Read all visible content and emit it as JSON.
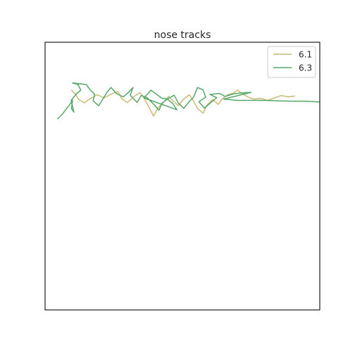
{
  "chart_data": {
    "type": "line",
    "title": "nose tracks",
    "xlabel": "",
    "ylabel": "",
    "xlim": [
      0,
      100
    ],
    "ylim": [
      0,
      100
    ],
    "grid": false,
    "axis_ticks": false,
    "legend_position": "upper right",
    "series": [
      {
        "name": "6.1",
        "color": "#ccb974",
        "points": [
          [
            9.5,
            82.2
          ],
          [
            11.0,
            80.6
          ],
          [
            12.3,
            78.6
          ],
          [
            14.3,
            77.4
          ],
          [
            16.5,
            79.0
          ],
          [
            19.0,
            80.4
          ],
          [
            21.5,
            79.2
          ],
          [
            24.0,
            80.6
          ],
          [
            26.5,
            81.6
          ],
          [
            28.0,
            78.8
          ],
          [
            30.0,
            77.5
          ],
          [
            32.5,
            79.8
          ],
          [
            34.5,
            81.2
          ],
          [
            36.0,
            79.2
          ],
          [
            37.5,
            76.3
          ],
          [
            39.5,
            72.4
          ],
          [
            41.0,
            75.4
          ],
          [
            43.0,
            77.4
          ],
          [
            45.0,
            79.8
          ],
          [
            46.5,
            78.2
          ],
          [
            48.5,
            76.3
          ],
          [
            50.5,
            78.8
          ],
          [
            52.5,
            80.4
          ],
          [
            54.0,
            78.1
          ],
          [
            55.5,
            75.3
          ],
          [
            57.5,
            73.5
          ],
          [
            59.0,
            76.6
          ],
          [
            61.0,
            78.6
          ],
          [
            63.0,
            76.8
          ],
          [
            64.5,
            78.9
          ],
          [
            66.5,
            80.4
          ],
          [
            68.5,
            81.0
          ],
          [
            70.0,
            82.1
          ],
          [
            72.0,
            80.6
          ],
          [
            74.0,
            79.5
          ],
          [
            76.0,
            78.8
          ],
          [
            78.5,
            79.0
          ],
          [
            81.0,
            78.3
          ],
          [
            83.5,
            79.2
          ],
          [
            86.0,
            80.1
          ],
          [
            88.5,
            79.6
          ],
          [
            91.0,
            79.9
          ]
        ]
      },
      {
        "name": "6.3",
        "color": "#55a868",
        "points": [
          [
            4.5,
            71.3
          ],
          [
            6.5,
            73.4
          ],
          [
            8.5,
            76.1
          ],
          [
            10.0,
            78.3
          ],
          [
            9.6,
            75.2
          ],
          [
            10.5,
            73.9
          ],
          [
            9.5,
            78.3
          ],
          [
            11.5,
            80.8
          ],
          [
            13.0,
            82.1
          ],
          [
            12.0,
            84.2
          ],
          [
            10.0,
            84.8
          ],
          [
            12.5,
            84.5
          ],
          [
            15.0,
            84.2
          ],
          [
            16.5,
            82.1
          ],
          [
            18.0,
            80.6
          ],
          [
            17.5,
            78.1
          ],
          [
            19.5,
            76.3
          ],
          [
            21.0,
            78.7
          ],
          [
            22.5,
            81.3
          ],
          [
            24.0,
            83.1
          ],
          [
            26.0,
            80.8
          ],
          [
            28.5,
            79.6
          ],
          [
            30.5,
            81.4
          ],
          [
            32.0,
            83.1
          ],
          [
            31.0,
            80.2
          ],
          [
            33.5,
            77.5
          ],
          [
            35.0,
            80.1
          ],
          [
            37.0,
            79.4
          ],
          [
            39.5,
            76.9
          ],
          [
            41.5,
            74.6
          ],
          [
            42.5,
            77.2
          ],
          [
            44.5,
            78.8
          ],
          [
            46.5,
            77.1
          ],
          [
            48.0,
            74.8
          ],
          [
            36.0,
            79.2
          ],
          [
            38.5,
            82.1
          ],
          [
            40.5,
            80.6
          ],
          [
            42.5,
            79.1
          ],
          [
            44.5,
            78.8
          ],
          [
            47.0,
            80.2
          ],
          [
            48.5,
            77.3
          ],
          [
            50.5,
            75.3
          ],
          [
            52.5,
            77.9
          ],
          [
            54.0,
            79.4
          ],
          [
            55.5,
            83.1
          ],
          [
            57.5,
            82.2
          ],
          [
            58.5,
            79.5
          ],
          [
            56.0,
            77.8
          ],
          [
            58.0,
            75.4
          ],
          [
            60.5,
            77.6
          ],
          [
            62.5,
            79.3
          ],
          [
            60.0,
            80.5
          ],
          [
            63.5,
            80.9
          ],
          [
            65.5,
            79.8
          ],
          [
            69.0,
            80.8
          ],
          [
            72.0,
            81.1
          ],
          [
            75.0,
            81.3
          ],
          [
            65.0,
            78.8
          ],
          [
            70.0,
            78.3
          ],
          [
            80.0,
            78.3
          ],
          [
            85.0,
            78.1
          ],
          [
            90.0,
            78.0
          ],
          [
            95.0,
            78.0
          ],
          [
            99.5,
            77.7
          ],
          [
            100,
            77.7
          ]
        ]
      }
    ]
  }
}
